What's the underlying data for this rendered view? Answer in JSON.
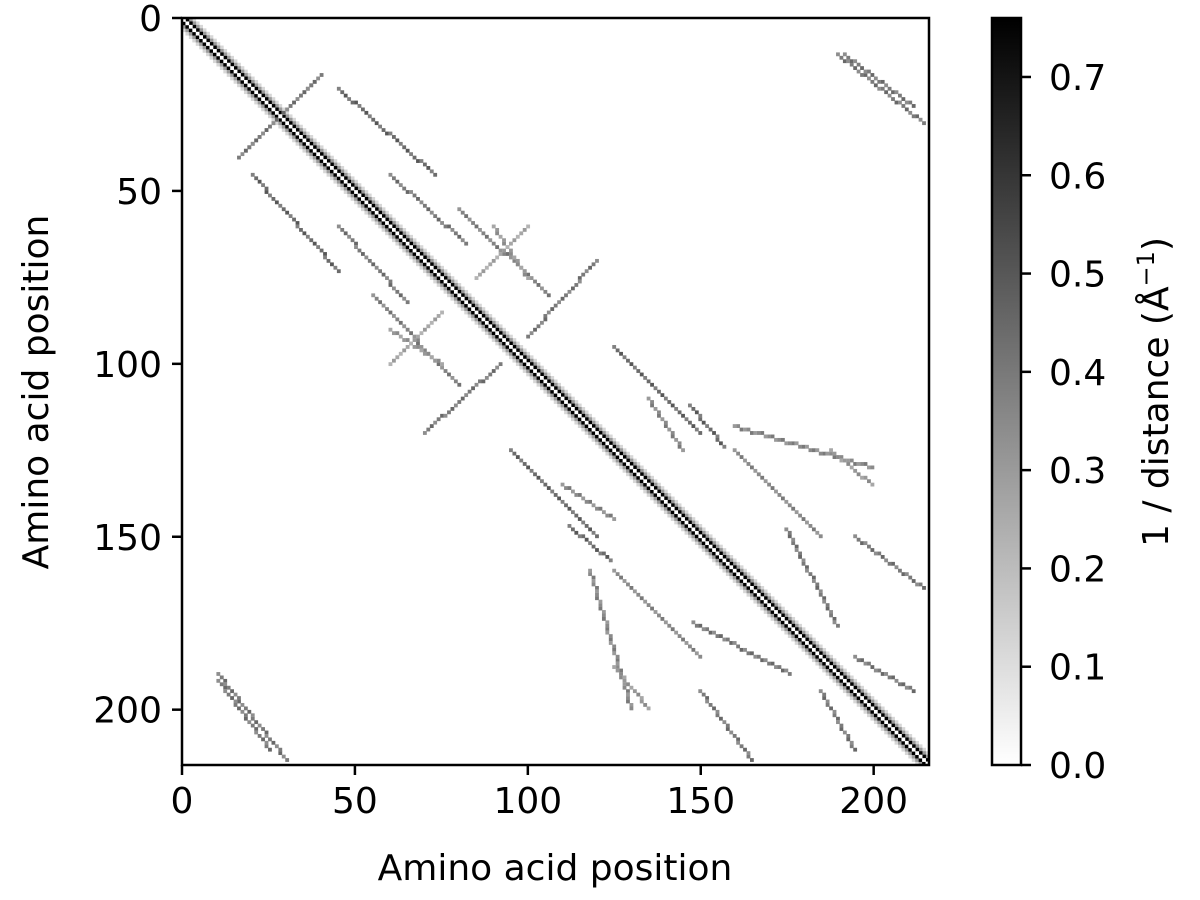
{
  "chart_data": {
    "type": "heatmap",
    "title": "",
    "xlabel": "Amino acid position",
    "ylabel": "Amino acid position",
    "n_residues": 217,
    "x_ticks": [
      0,
      50,
      100,
      150,
      200
    ],
    "y_ticks": [
      0,
      50,
      100,
      150,
      200
    ],
    "x_range": [
      0,
      216
    ],
    "y_range": [
      0,
      216
    ],
    "y_inverted": true,
    "colormap": "gray_r",
    "colorbar": {
      "label_prefix": "1 / distance (Å",
      "label_exponent": "−1",
      "label_suffix": ")",
      "range": [
        0.0,
        0.76
      ],
      "ticks": [
        "0.0",
        "0.1",
        "0.2",
        "0.3",
        "0.4",
        "0.5",
        "0.6",
        "0.7"
      ]
    },
    "diagonal_value": 0.76,
    "background_value": 0.0,
    "contact_segments": [
      {
        "i": [
          18,
          40
        ],
        "j": [
          38,
          16
        ],
        "value": 0.45
      },
      {
        "i": [
          20,
          45
        ],
        "j": [
          45,
          73
        ],
        "value": 0.5
      },
      {
        "i": [
          45,
          65
        ],
        "j": [
          60,
          82
        ],
        "value": 0.45
      },
      {
        "i": [
          55,
          80
        ],
        "j": [
          80,
          106
        ],
        "value": 0.42
      },
      {
        "i": [
          70,
          92
        ],
        "j": [
          120,
          100
        ],
        "value": 0.45
      },
      {
        "i": [
          95,
          120
        ],
        "j": [
          125,
          150
        ],
        "value": 0.5
      },
      {
        "i": [
          112,
          124
        ],
        "j": [
          147,
          157
        ],
        "value": 0.5
      },
      {
        "i": [
          118,
          130
        ],
        "j": [
          160,
          200
        ],
        "value": 0.4
      },
      {
        "i": [
          135,
          145
        ],
        "j": [
          110,
          125
        ],
        "value": 0.4
      },
      {
        "i": [
          150,
          165
        ],
        "j": [
          195,
          215
        ],
        "value": 0.45
      },
      {
        "i": [
          160,
          185
        ],
        "j": [
          125,
          150
        ],
        "value": 0.4
      },
      {
        "i": [
          175,
          190
        ],
        "j": [
          148,
          176
        ],
        "value": 0.45
      },
      {
        "i": [
          185,
          195
        ],
        "j": [
          195,
          212
        ],
        "value": 0.45
      },
      {
        "i": [
          190,
          215
        ],
        "j": [
          10,
          30
        ],
        "value": 0.45
      },
      {
        "i": [
          10,
          25
        ],
        "j": [
          192,
          212
        ],
        "value": 0.45
      },
      {
        "i": [
          125,
          135
        ],
        "j": [
          188,
          200
        ],
        "value": 0.35
      },
      {
        "i": [
          60,
          75
        ],
        "j": [
          90,
          100
        ],
        "value": 0.35
      },
      {
        "i": [
          85,
          100
        ],
        "j": [
          75,
          60
        ],
        "value": 0.3
      }
    ]
  }
}
